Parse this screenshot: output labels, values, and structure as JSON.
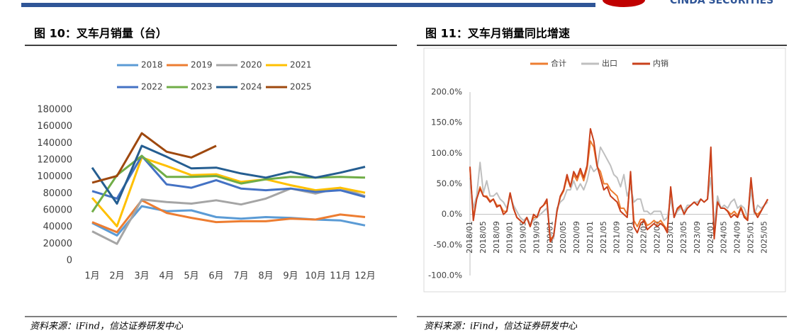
{
  "header": {
    "brand": "CINDA SECURITIES"
  },
  "chart_data": [
    {
      "type": "line",
      "title": "图 10：叉车月销量（台）",
      "source": "资料来源：iFind，信达证券研发中心",
      "categories": [
        "1月",
        "2月",
        "3月",
        "4月",
        "5月",
        "6月",
        "7月",
        "8月",
        "9月",
        "10月",
        "11月",
        "12月"
      ],
      "ylim": [
        0,
        180000
      ],
      "yticks": [
        0,
        20000,
        40000,
        60000,
        80000,
        100000,
        120000,
        140000,
        160000,
        180000
      ],
      "grid": false,
      "legend": "top",
      "series": [
        {
          "name": "2018",
          "color": "#5b9bd5",
          "values": [
            45000,
            30000,
            65000,
            59000,
            60000,
            52000,
            50000,
            52000,
            51000,
            49000,
            48000,
            42000
          ]
        },
        {
          "name": "2019",
          "color": "#ed7d31",
          "values": [
            46000,
            34000,
            72000,
            57000,
            51000,
            46000,
            47000,
            47000,
            50000,
            49000,
            55000,
            52000
          ]
        },
        {
          "name": "2020",
          "color": "#a5a5a5",
          "values": [
            35000,
            20000,
            73000,
            70000,
            68000,
            72000,
            67000,
            74000,
            86000,
            80000,
            87000,
            77000
          ]
        },
        {
          "name": "2021",
          "color": "#ffc000",
          "values": [
            75000,
            41000,
            123000,
            113000,
            102000,
            103000,
            94000,
            97000,
            90000,
            84000,
            87000,
            81000
          ]
        },
        {
          "name": "2022",
          "color": "#4472c4",
          "values": [
            83000,
            74000,
            125000,
            91000,
            87000,
            96000,
            86000,
            84000,
            86000,
            82000,
            84000,
            76000
          ]
        },
        {
          "name": "2023",
          "color": "#70ad47",
          "values": [
            58000,
            102000,
            125000,
            100000,
            100000,
            101000,
            92000,
            97000,
            100000,
            99000,
            100000,
            99000
          ]
        },
        {
          "name": "2024",
          "color": "#255e91",
          "values": [
            111000,
            68000,
            137000,
            124000,
            110000,
            111000,
            104000,
            99000,
            106000,
            99000,
            105000,
            112000
          ]
        },
        {
          "name": "2025",
          "color": "#9e480e",
          "values": [
            93000,
            101000,
            152000,
            130000,
            123000,
            137000,
            null,
            null,
            null,
            null,
            null,
            null
          ]
        }
      ]
    },
    {
      "type": "line",
      "title": "图 11：叉车月销量同比增速",
      "source": "资料来源：iFind，信达证券研发中心",
      "categories": [
        "2018/01",
        null,
        null,
        null,
        "2018/05",
        null,
        null,
        null,
        "2018/09",
        null,
        null,
        null,
        "2019/01",
        null,
        null,
        null,
        "2019/05",
        null,
        null,
        null,
        "2019/09",
        null,
        null,
        null,
        "2020/01",
        null,
        null,
        null,
        "2020/05",
        null,
        null,
        null,
        "2020/09",
        null,
        null,
        null,
        "2021/01",
        null,
        null,
        null,
        "2021/05",
        null,
        null,
        null,
        "2021/09",
        null,
        null,
        null,
        "2022/01",
        null,
        null,
        null,
        "2022/05",
        null,
        null,
        null,
        "2022/09",
        null,
        null,
        null,
        "2023/01",
        null,
        null,
        null,
        "2023/05",
        null,
        null,
        null,
        "2023/09",
        null,
        null,
        null,
        "2024/01",
        null,
        null,
        null,
        "2024/05",
        null,
        null,
        null,
        "2024/09",
        null,
        null,
        null,
        "2025/01",
        null,
        null,
        null,
        "2025/05",
        null
      ],
      "ylim": [
        -100,
        200
      ],
      "yticks": [
        {
          "value": -100,
          "label": "-100.0%"
        },
        {
          "value": -50,
          "label": "-50.0%"
        },
        {
          "value": 0,
          "label": "0.0%"
        },
        {
          "value": 50,
          "label": "50.0%"
        },
        {
          "value": 100,
          "label": "100.0%"
        },
        {
          "value": 150,
          "label": "150.0%"
        },
        {
          "value": 200,
          "label": "200.0%"
        }
      ],
      "grid": false,
      "legend": "top",
      "series": [
        {
          "name": "合计",
          "color": "#ed7d31",
          "values": [
            75,
            -5,
            25,
            45,
            30,
            30,
            22,
            25,
            15,
            15,
            5,
            5,
            35,
            10,
            -5,
            -10,
            -15,
            -5,
            -20,
            -5,
            -5,
            10,
            15,
            20,
            -40,
            -35,
            5,
            28,
            38,
            60,
            45,
            65,
            55,
            70,
            55,
            75,
            120,
            110,
            78,
            70,
            50,
            50,
            40,
            35,
            30,
            10,
            10,
            0,
            65,
            -10,
            -20,
            -8,
            -8,
            -18,
            -15,
            -10,
            -15,
            -10,
            -18,
            -25,
            40,
            -5,
            8,
            12,
            2,
            10,
            15,
            20,
            15,
            25,
            20,
            25,
            100,
            -35,
            22,
            10,
            10,
            6,
            0,
            5,
            -2,
            12,
            -2,
            -8,
            55,
            4,
            0,
            6,
            15,
            24
          ]
        },
        {
          "name": "出口",
          "color": "#bfbfbf",
          "values": [
            60,
            10,
            30,
            85,
            35,
            55,
            30,
            30,
            35,
            25,
            20,
            10,
            30,
            15,
            5,
            -5,
            -10,
            -5,
            -15,
            -10,
            -5,
            0,
            5,
            10,
            -30,
            -40,
            10,
            20,
            25,
            40,
            40,
            55,
            40,
            50,
            40,
            55,
            80,
            70,
            75,
            110,
            100,
            90,
            80,
            65,
            60,
            45,
            65,
            30,
            45,
            20,
            25,
            25,
            5,
            5,
            0,
            5,
            5,
            5,
            -10,
            -5,
            25,
            -5,
            5,
            10,
            5,
            15,
            15,
            20,
            20,
            25,
            20,
            25,
            60,
            -20,
            30,
            10,
            15,
            10,
            20,
            25,
            10,
            15,
            10,
            -5,
            40,
            0,
            15,
            10,
            15,
            20
          ]
        },
        {
          "name": "内销",
          "color": "#c9401b",
          "values": [
            78,
            -10,
            25,
            42,
            30,
            28,
            20,
            25,
            12,
            15,
            0,
            5,
            35,
            10,
            -5,
            -10,
            -15,
            -5,
            -20,
            0,
            -5,
            10,
            15,
            25,
            -45,
            -35,
            5,
            30,
            40,
            65,
            45,
            70,
            60,
            75,
            60,
            80,
            140,
            120,
            80,
            60,
            40,
            45,
            30,
            25,
            20,
            5,
            0,
            -5,
            70,
            -20,
            -30,
            -15,
            -10,
            -25,
            -20,
            -15,
            -20,
            -15,
            -20,
            -30,
            45,
            -5,
            10,
            15,
            0,
            10,
            15,
            20,
            15,
            25,
            20,
            25,
            110,
            -40,
            20,
            10,
            10,
            5,
            -5,
            0,
            -5,
            10,
            -5,
            -10,
            60,
            5,
            -5,
            5,
            15,
            25
          ]
        }
      ]
    }
  ]
}
